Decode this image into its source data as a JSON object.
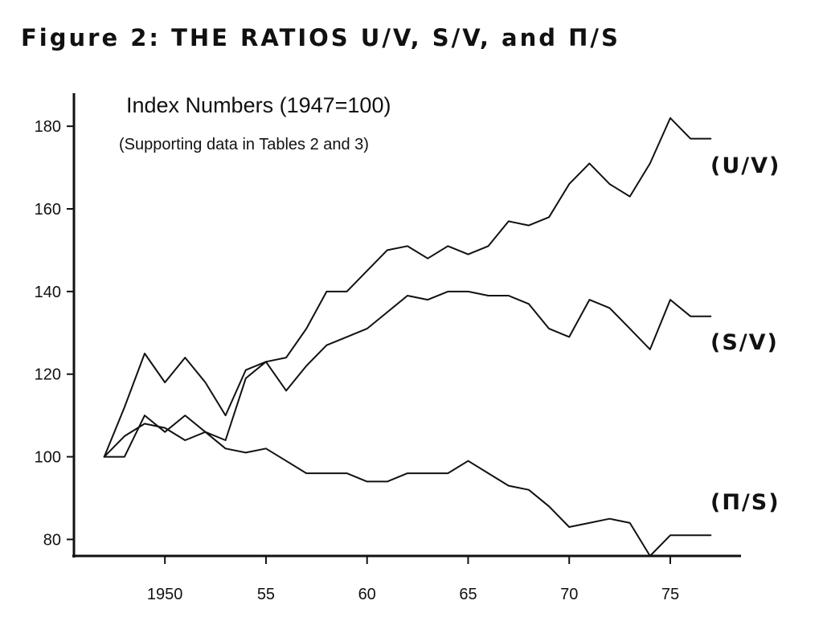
{
  "figure": {
    "title": "Figure 2: THE RATIOS U/V, S/V, and Π/S"
  },
  "chart_data": {
    "type": "line",
    "title": "Index Numbers (1947=100)",
    "subtitle": "(Supporting data in Tables 2 and 3)",
    "xlabel": "",
    "ylabel": "",
    "xlim": [
      1945.5,
      1978.5
    ],
    "ylim": [
      76,
      188
    ],
    "grid": false,
    "x_ticks": [
      {
        "value": 1950,
        "label": "1950"
      },
      {
        "value": 1955,
        "label": "55"
      },
      {
        "value": 1960,
        "label": "60"
      },
      {
        "value": 1965,
        "label": "65"
      },
      {
        "value": 1970,
        "label": "70"
      },
      {
        "value": 1975,
        "label": "75"
      }
    ],
    "y_ticks": [
      {
        "value": 80,
        "label": "80"
      },
      {
        "value": 100,
        "label": "100"
      },
      {
        "value": 120,
        "label": "120"
      },
      {
        "value": 140,
        "label": "140"
      },
      {
        "value": 160,
        "label": "160"
      },
      {
        "value": 180,
        "label": "180"
      }
    ],
    "x": [
      1947,
      1948,
      1949,
      1950,
      1951,
      1952,
      1953,
      1954,
      1955,
      1956,
      1957,
      1958,
      1959,
      1960,
      1961,
      1962,
      1963,
      1964,
      1965,
      1966,
      1967,
      1968,
      1969,
      1970,
      1971,
      1972,
      1973,
      1974,
      1975,
      1976,
      1977
    ],
    "series": [
      {
        "name": "(U/V)",
        "values": [
          100,
          100,
          110,
          106,
          110,
          106,
          104,
          119,
          123,
          124,
          131,
          140,
          140,
          145,
          150,
          151,
          148,
          151,
          149,
          151,
          157,
          156,
          158,
          166,
          171,
          166,
          163,
          171,
          182,
          177,
          177
        ]
      },
      {
        "name": "(S/V)",
        "values": [
          100,
          112,
          125,
          118,
          124,
          118,
          110,
          121,
          123,
          116,
          122,
          127,
          129,
          131,
          135,
          139,
          138,
          140,
          140,
          139,
          139,
          137,
          131,
          129,
          138,
          136,
          131,
          126,
          138,
          134,
          134
        ]
      },
      {
        "name": "(Π/S)",
        "values": [
          100,
          105,
          108,
          107,
          104,
          106,
          102,
          101,
          102,
          99,
          96,
          96,
          96,
          94,
          94,
          96,
          96,
          96,
          99,
          96,
          93,
          92,
          88,
          83,
          84,
          85,
          84,
          76,
          81,
          81,
          81
        ]
      }
    ]
  }
}
